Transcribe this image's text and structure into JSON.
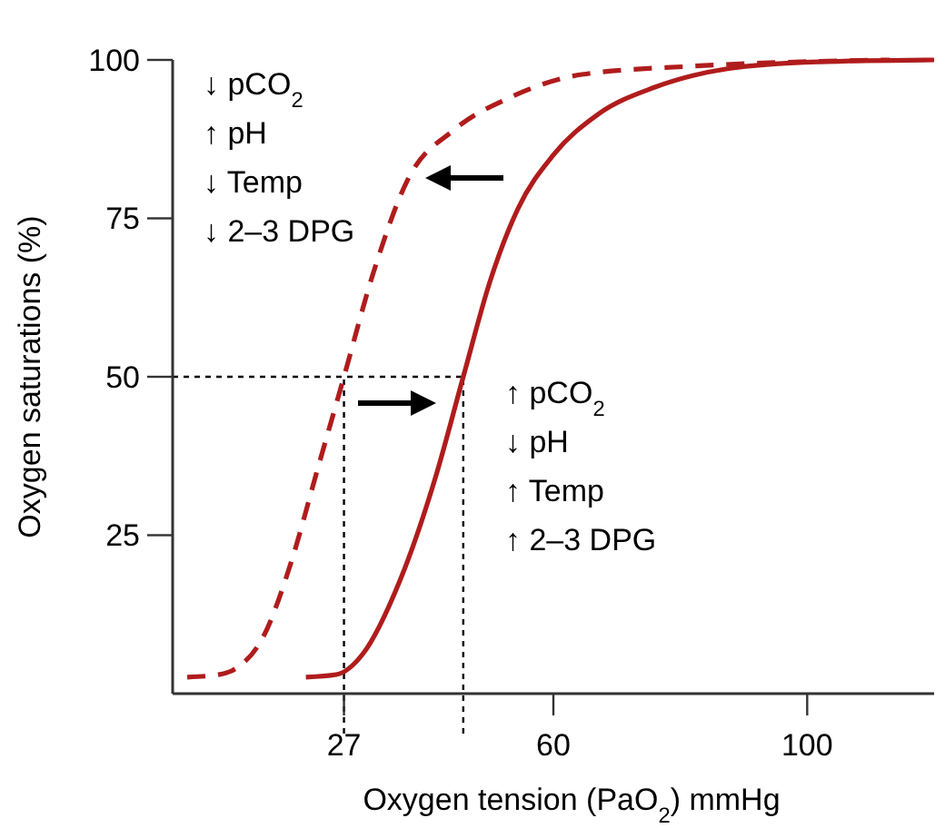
{
  "chart_data": {
    "type": "line",
    "xlabel": "Oxygen tension (PaO$_{2}$) mmHg",
    "ylabel": "Oxygen saturations (%)",
    "xlim": [
      0,
      120
    ],
    "ylim": [
      0,
      100
    ],
    "xticks": [
      27,
      60,
      100
    ],
    "yticks": [
      25,
      50,
      75,
      100
    ],
    "grid": false,
    "marker": "none",
    "series": [
      {
        "color": "#b01c1c",
        "line_style": "dashed",
        "x": [
          2.3,
          7.2,
          10,
          14.3,
          18.6,
          23,
          27,
          31.5,
          37,
          44.4,
          53,
          64.5,
          81.7,
          99,
          113
        ],
        "values": [
          2.6,
          3,
          4,
          9,
          20.5,
          36,
          50,
          66,
          81,
          89,
          94,
          97.7,
          99,
          99.7,
          100
        ]
      },
      {
        "color": "#b01c1c",
        "line_style": "solid",
        "x": [
          21,
          25.8,
          30,
          35.8,
          41.5,
          45.8,
          50,
          54.4,
          60,
          67,
          76,
          87.4,
          101.7,
          120
        ],
        "values": [
          2.6,
          3,
          6.3,
          17.8,
          34.4,
          50,
          65,
          76.5,
          85,
          91.4,
          95.7,
          98.6,
          99.7,
          100
        ]
      }
    ],
    "ref_lines": [
      {
        "axis": "y",
        "value": 50,
        "line_style": "dotted"
      },
      {
        "axis": "x",
        "value": 27,
        "line_style": "dotted"
      },
      {
        "axis": "x",
        "value": 45.8,
        "line_style": "dotted"
      }
    ],
    "annotations": [
      "↓ pCO$_{2}$\n↑ pH\n↓ Temp\n↓ 2–3 DPG",
      "↑ pCO$_{2}$\n↓ pH\n↑ Temp\n↑ 2–3 DPG"
    ]
  }
}
